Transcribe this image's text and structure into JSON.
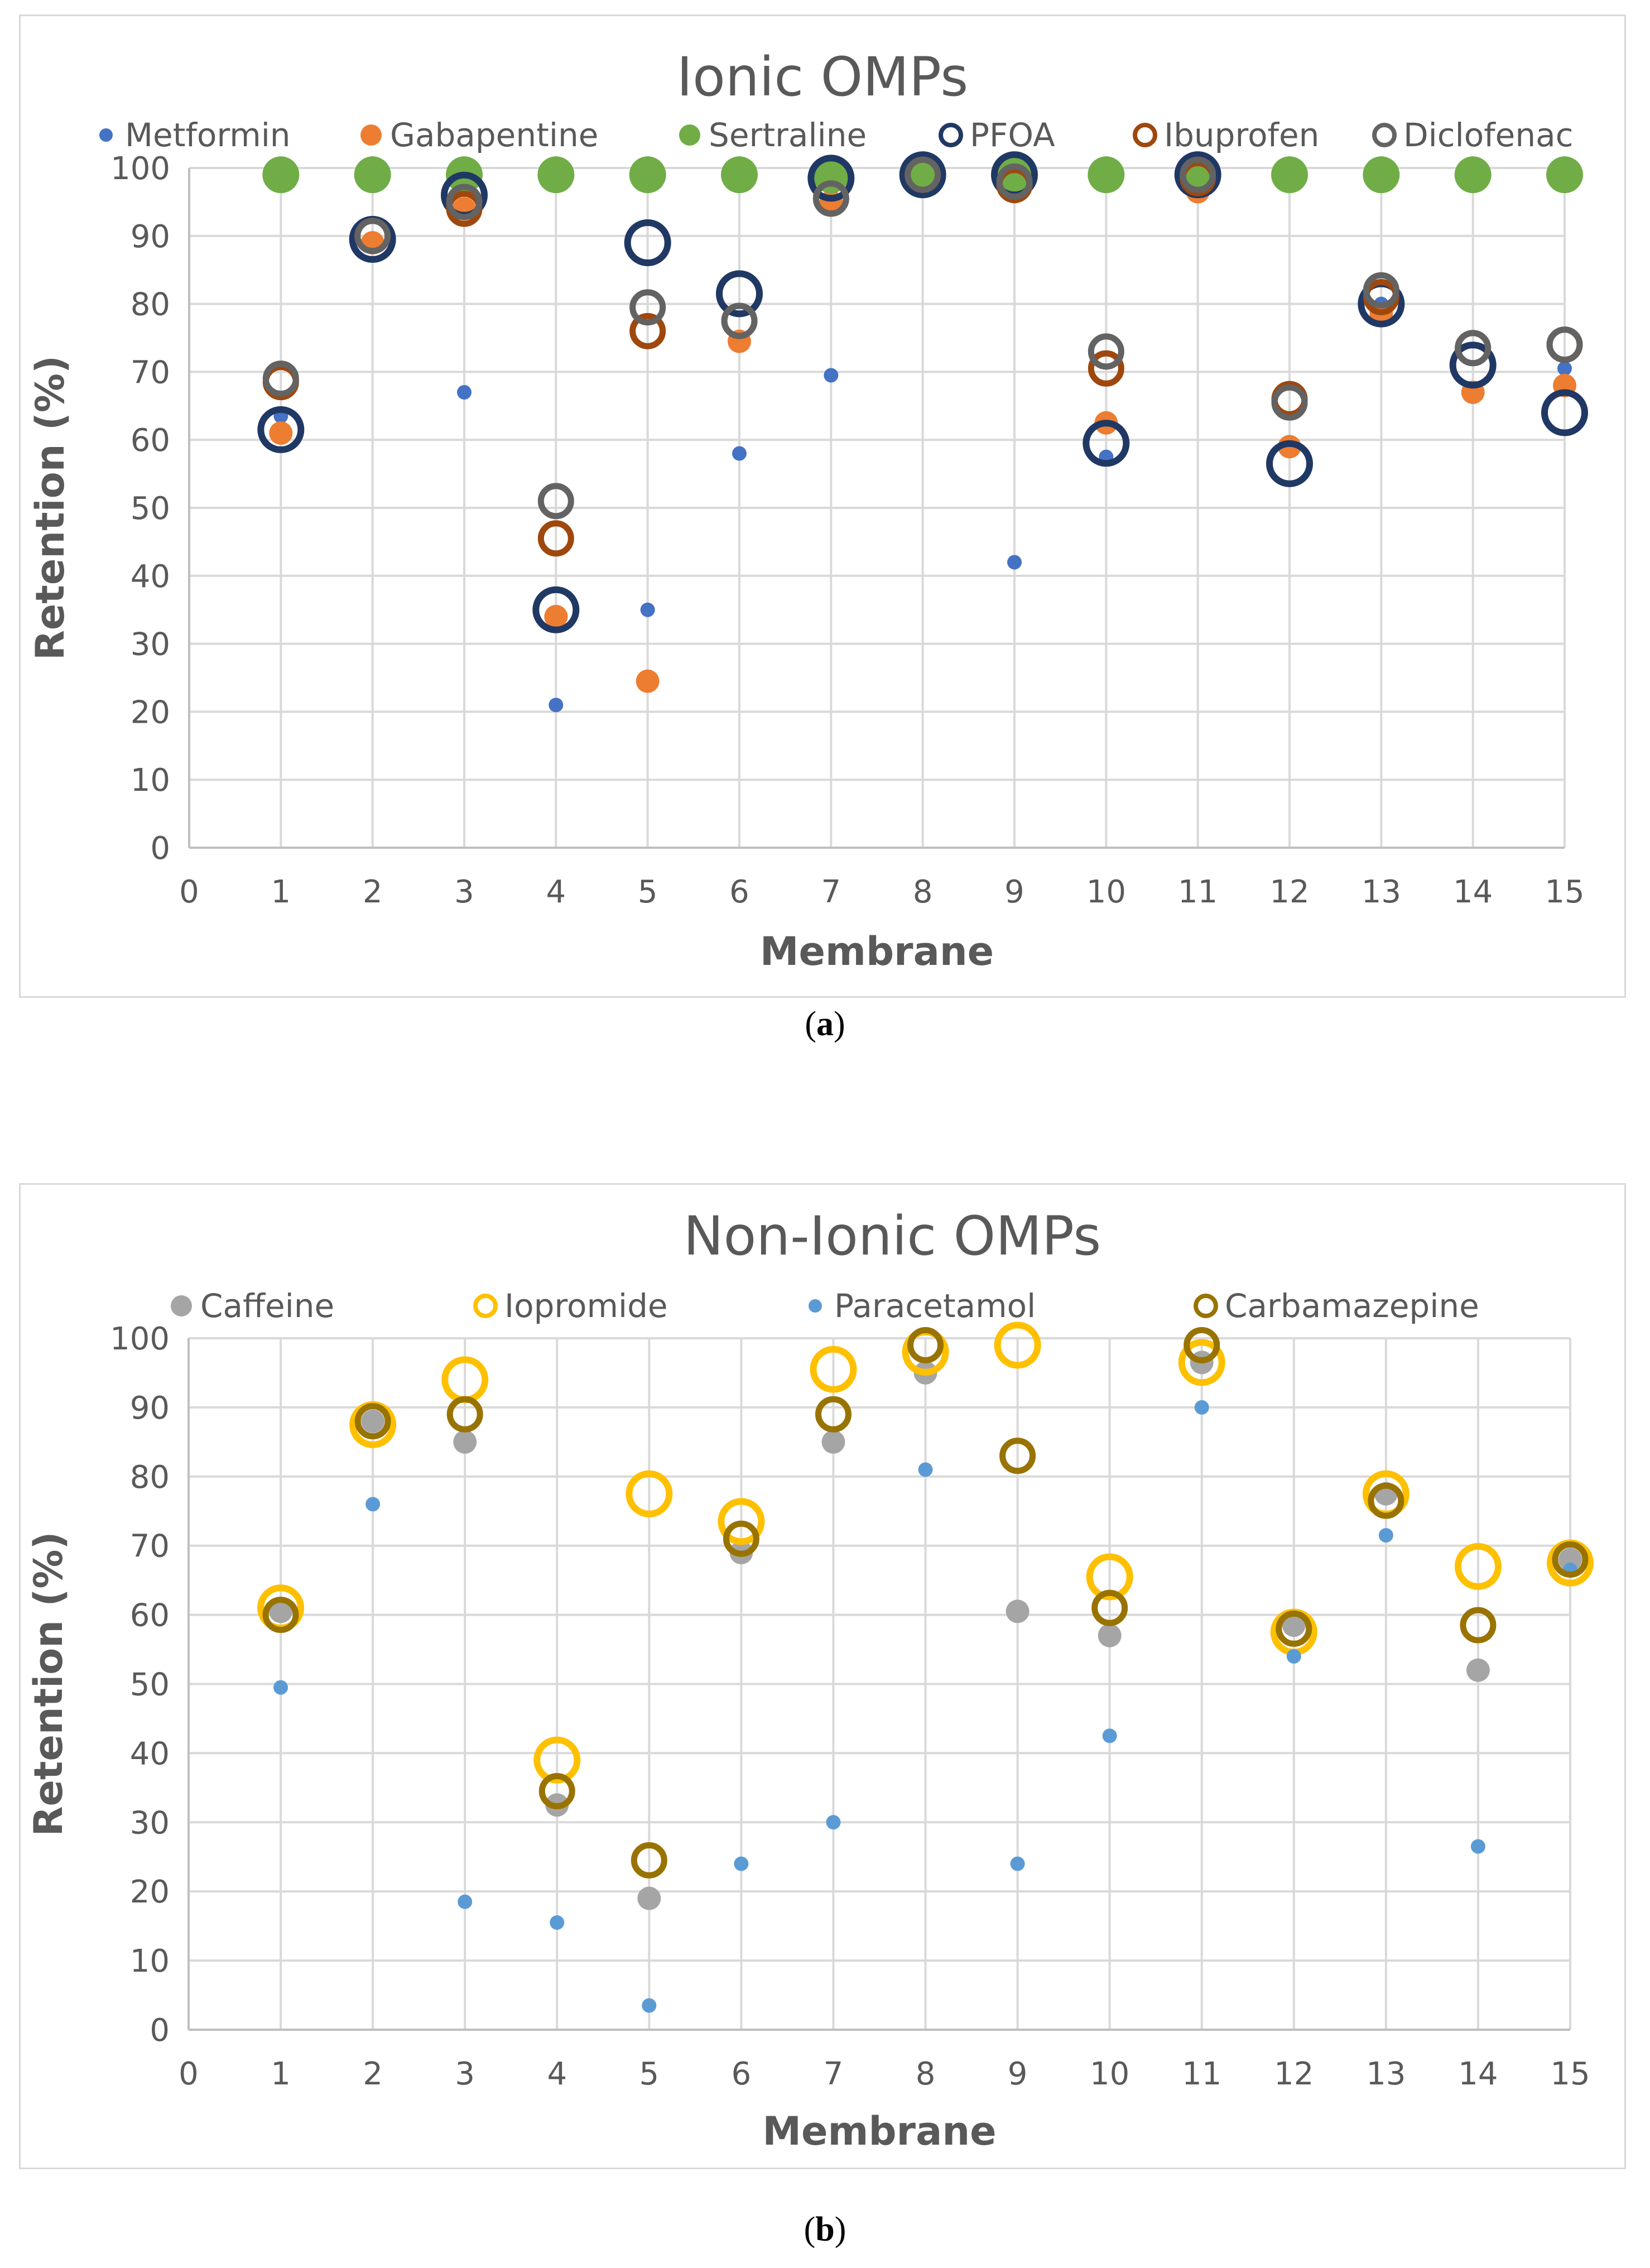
{
  "chart_data": [
    {
      "panel": "a",
      "type": "scatter",
      "title": "Ionic OMPs",
      "xlabel": "Membrane",
      "ylabel": "Retention (%)",
      "xlim": [
        0,
        15
      ],
      "ylim": [
        0,
        100
      ],
      "xticks": [
        0,
        1,
        2,
        3,
        4,
        5,
        6,
        7,
        8,
        9,
        10,
        11,
        12,
        13,
        14,
        15
      ],
      "yticks": [
        0,
        10,
        20,
        30,
        40,
        50,
        60,
        70,
        80,
        90,
        100
      ],
      "grid": true,
      "legend_position": "top",
      "x": [
        1,
        2,
        3,
        4,
        5,
        6,
        7,
        8,
        9,
        10,
        11,
        12,
        13,
        14,
        15
      ],
      "series": [
        {
          "name": "Metformin",
          "marker": "filled-small",
          "color": "#4472c4",
          "values": [
            63.5,
            89,
            67,
            21,
            35,
            58,
            69.5,
            99,
            42,
            57.5,
            99,
            59,
            80,
            66.5,
            70.5
          ]
        },
        {
          "name": "Gabapentine",
          "marker": "filled-medium",
          "color": "#ed7d31",
          "values": [
            61,
            89,
            94,
            34,
            24.5,
            74.5,
            95,
            99,
            96.5,
            62.5,
            96.5,
            59,
            78.5,
            67,
            68
          ]
        },
        {
          "name": "Sertraline",
          "marker": "filled-large",
          "color": "#70ad47",
          "values": [
            99,
            99,
            99,
            99,
            99,
            99,
            99,
            99,
            99,
            99,
            99,
            99,
            99,
            99,
            99
          ]
        },
        {
          "name": "PFOA",
          "marker": "ring-large",
          "color": "#203864",
          "values": [
            61.5,
            89.5,
            96,
            35,
            89,
            81.5,
            98.5,
            99,
            99,
            59.5,
            99,
            56.5,
            80,
            71,
            64
          ]
        },
        {
          "name": "Ibuprofen",
          "marker": "ring-medium",
          "color": "#9e480e",
          "values": [
            68.5,
            90,
            94,
            45.5,
            76,
            77.5,
            95.5,
            99,
            97.5,
            70.5,
            98.5,
            66,
            81,
            73.5,
            74
          ]
        },
        {
          "name": "Diclofenac",
          "marker": "ring-medium",
          "color": "#636363",
          "values": [
            69,
            90,
            95,
            51,
            79.5,
            77.5,
            95.5,
            99,
            98,
            73,
            99,
            65.5,
            82,
            73.5,
            74
          ]
        }
      ]
    },
    {
      "panel": "b",
      "type": "scatter",
      "title": "Non-Ionic OMPs",
      "xlabel": "Membrane",
      "ylabel": "Retention (%)",
      "xlim": [
        0,
        15
      ],
      "ylim": [
        0,
        100
      ],
      "xticks": [
        0,
        1,
        2,
        3,
        4,
        5,
        6,
        7,
        8,
        9,
        10,
        11,
        12,
        13,
        14,
        15
      ],
      "yticks": [
        0,
        10,
        20,
        30,
        40,
        50,
        60,
        70,
        80,
        90,
        100
      ],
      "grid": true,
      "legend_position": "top",
      "x": [
        1,
        2,
        3,
        4,
        5,
        6,
        7,
        8,
        9,
        10,
        11,
        12,
        13,
        14,
        15
      ],
      "series": [
        {
          "name": "Caffeine",
          "marker": "filled-medium",
          "color": "#a5a5a5",
          "values": [
            60.5,
            88,
            85,
            32.5,
            19,
            69,
            85,
            95,
            60.5,
            57,
            96.5,
            58.5,
            77.5,
            52,
            68
          ]
        },
        {
          "name": "Iopromide",
          "marker": "ring-large",
          "color": "#ffc000",
          "values": [
            61,
            87.5,
            94,
            39,
            77.5,
            73.5,
            95.5,
            98,
            99,
            65.5,
            96.5,
            57.5,
            77.5,
            67,
            67.5
          ]
        },
        {
          "name": "Paracetamol",
          "marker": "filled-small",
          "color": "#5b9bd5",
          "values": [
            49.5,
            76,
            18.5,
            15.5,
            3.5,
            24,
            30,
            81,
            24,
            42.5,
            90,
            54,
            71.5,
            26.5,
            66.5
          ]
        },
        {
          "name": "Carbamazepine",
          "marker": "ring-medium",
          "color": "#997300",
          "values": [
            60,
            88,
            89,
            34.5,
            24.5,
            71,
            89,
            99,
            83,
            61,
            99,
            58,
            76.5,
            58.5,
            68
          ]
        }
      ]
    }
  ],
  "captions": {
    "a": "a",
    "b": "b"
  }
}
